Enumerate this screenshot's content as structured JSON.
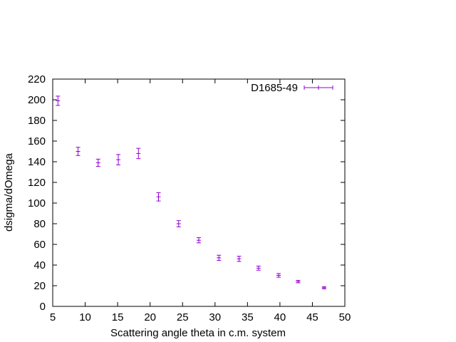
{
  "chart_data": {
    "type": "scatter",
    "title": "",
    "xlabel": "Scattering angle theta in c.m. system",
    "ylabel": "dsigma/dOmega",
    "xlim": [
      5,
      50
    ],
    "ylim": [
      0,
      220
    ],
    "xticks": [
      "5",
      "10",
      "15",
      "20",
      "25",
      "30",
      "35",
      "40",
      "45",
      "50"
    ],
    "yticks": [
      "0",
      "20",
      "40",
      "60",
      "80",
      "100",
      "120",
      "140",
      "160",
      "180",
      "200",
      "220"
    ],
    "grid": false,
    "legend_position": "top-right",
    "series": [
      {
        "name": "D1685-49",
        "color": "#9400d3",
        "marker": "plus",
        "error_bars": true,
        "points": [
          {
            "x": 5.8,
            "y": 199,
            "err": 4.5
          },
          {
            "x": 8.9,
            "y": 150,
            "err": 4
          },
          {
            "x": 12.0,
            "y": 139,
            "err": 3.5
          },
          {
            "x": 15.1,
            "y": 142,
            "err": 5
          },
          {
            "x": 18.2,
            "y": 148,
            "err": 5
          },
          {
            "x": 21.3,
            "y": 106,
            "err": 4
          },
          {
            "x": 24.4,
            "y": 80,
            "err": 3
          },
          {
            "x": 27.5,
            "y": 64,
            "err": 2.5
          },
          {
            "x": 30.6,
            "y": 47,
            "err": 2.5
          },
          {
            "x": 33.7,
            "y": 46,
            "err": 2.5
          },
          {
            "x": 36.7,
            "y": 37,
            "err": 2
          },
          {
            "x": 39.8,
            "y": 30,
            "err": 1.8
          },
          {
            "x": 42.8,
            "y": 24,
            "err": 1.2
          },
          {
            "x": 46.8,
            "y": 18,
            "err": 1
          }
        ]
      }
    ]
  }
}
